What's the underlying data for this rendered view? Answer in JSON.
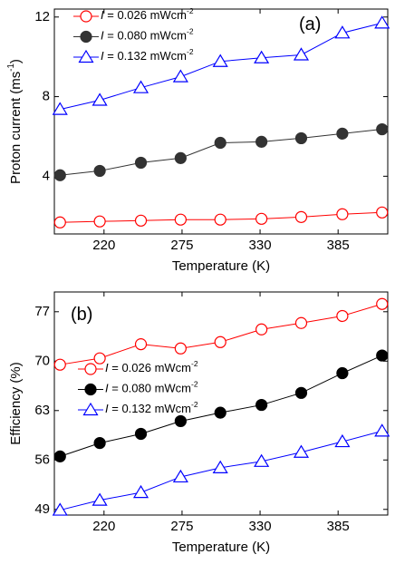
{
  "chart_data": [
    {
      "type": "line",
      "annotation": "(a)",
      "x_label": "Temperature (K)",
      "y_label": "Proton current (ms-1)",
      "x": [
        189,
        217,
        246,
        274,
        302,
        331,
        359,
        388,
        416
      ],
      "xlim": [
        185,
        420
      ],
      "xticks": [
        220,
        275,
        330,
        385
      ],
      "ylim": [
        1.1,
        12.4
      ],
      "yticks": [
        4,
        8,
        12
      ],
      "series": [
        {
          "name": "I = 0.026 mWcm-2",
          "color": "#ff0000",
          "marker": "circle-open",
          "values": [
            1.68,
            1.73,
            1.77,
            1.82,
            1.82,
            1.86,
            1.95,
            2.09,
            2.18
          ]
        },
        {
          "name": "I = 0.080 mWcm-2",
          "color": "#333333",
          "marker": "circle",
          "values": [
            4.05,
            4.27,
            4.68,
            4.91,
            5.68,
            5.73,
            5.91,
            6.14,
            6.36
          ]
        },
        {
          "name": "I = 0.132 mWcm-2",
          "color": "#0000ff",
          "marker": "triangle-open",
          "values": [
            7.36,
            7.82,
            8.45,
            9.0,
            9.77,
            9.95,
            10.1,
            11.2,
            11.7
          ]
        }
      ]
    },
    {
      "type": "line",
      "annotation": "(b)",
      "x_label": "Temperature (K)",
      "y_label": "Efficiency (%)",
      "x": [
        189,
        217,
        246,
        274,
        302,
        331,
        359,
        388,
        416
      ],
      "xlim": [
        185,
        420
      ],
      "xticks": [
        220,
        275,
        330,
        385
      ],
      "ylim": [
        48.2,
        79.8
      ],
      "yticks": [
        49,
        56,
        63,
        70,
        77
      ],
      "series": [
        {
          "name": "I = 0.026 mWcm-2",
          "color": "#ff0000",
          "marker": "circle-open",
          "values": [
            69.5,
            70.4,
            72.4,
            71.8,
            72.7,
            74.5,
            75.4,
            76.4,
            78.1
          ]
        },
        {
          "name": "I = 0.080 mWcm-2",
          "color": "#000000",
          "marker": "circle",
          "values": [
            56.5,
            58.4,
            59.7,
            61.5,
            62.7,
            63.8,
            65.5,
            68.3,
            70.8
          ]
        },
        {
          "name": "I = 0.132 mWcm-2",
          "color": "#0000ff",
          "marker": "triangle-open",
          "values": [
            48.9,
            50.3,
            51.4,
            53.6,
            54.9,
            55.8,
            57.1,
            58.6,
            60.1
          ]
        }
      ]
    }
  ]
}
